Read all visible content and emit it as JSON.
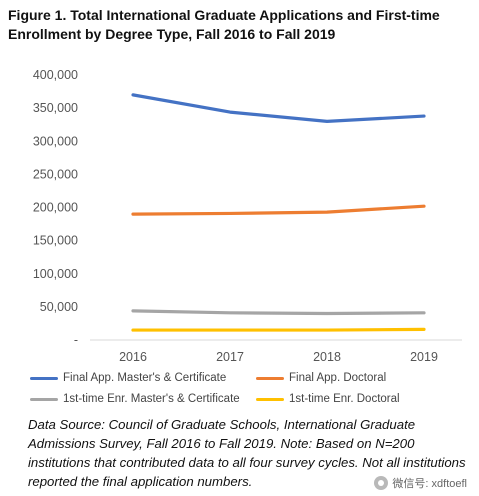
{
  "title": "Figure 1. Total International Graduate Applications and First-time Enrollment by Degree Type, Fall 2016 to Fall 2019",
  "note": "Data Source: Council of Graduate Schools, International Graduate Admissions Survey, Fall 2016 to Fall 2019. Note: Based on N=200 institutions that contributed data to all four survey cycles. Not all institutions reported the final application numbers.",
  "watermark": "微信号: xdftoefl",
  "chart_data": {
    "type": "line",
    "title": "Figure 1. Total International Graduate Applications and First-time Enrollment by Degree Type, Fall 2016 to Fall 2019",
    "xlabel": "",
    "ylabel": "",
    "categories": [
      "2016",
      "2017",
      "2018",
      "2019"
    ],
    "ylim": [
      0,
      400000
    ],
    "yticks": [
      0,
      50000,
      100000,
      150000,
      200000,
      250000,
      300000,
      350000,
      400000
    ],
    "ytick_labels": [
      "-",
      "50,000",
      "100,000",
      "150,000",
      "200,000",
      "250,000",
      "300,000",
      "350,000",
      "400,000"
    ],
    "grid": false,
    "legend_position": "bottom",
    "series": [
      {
        "name": "Final App. Master's & Certificate",
        "color": "#4472C4",
        "values": [
          370000,
          344000,
          330000,
          338000
        ]
      },
      {
        "name": "Final App. Doctoral",
        "color": "#ED7D31",
        "values": [
          190000,
          191000,
          193000,
          202000
        ]
      },
      {
        "name": "1st-time Enr. Master's & Certificate",
        "color": "#A5A5A5",
        "values": [
          44000,
          41000,
          40000,
          41000
        ]
      },
      {
        "name": "1st-time Enr. Doctoral",
        "color": "#FFC000",
        "values": [
          15000,
          15000,
          15000,
          16000
        ]
      }
    ]
  }
}
